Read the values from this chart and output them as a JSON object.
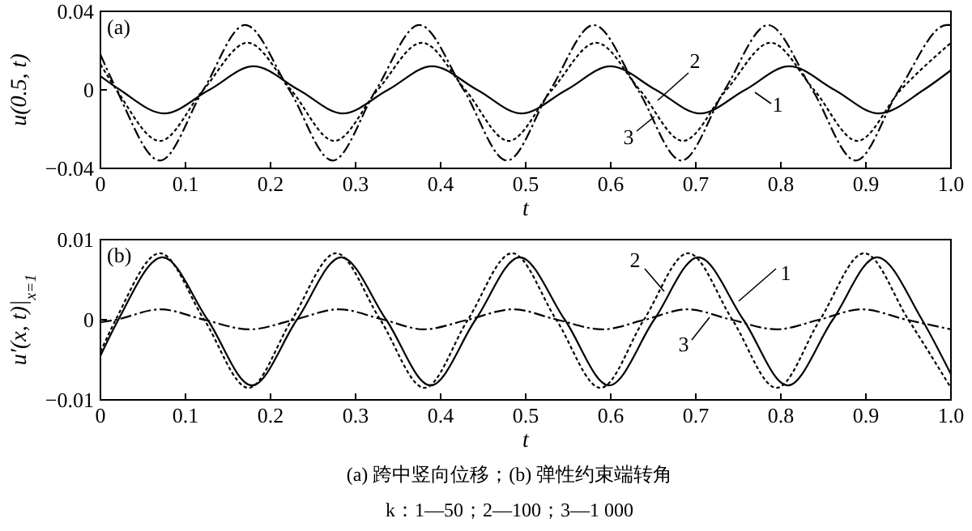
{
  "chart_data": [
    {
      "type": "line",
      "title": "(a)",
      "xlabel": "t",
      "ylabel": "u(0.5, t)",
      "xlim": [
        0,
        1
      ],
      "ylim": [
        -0.04,
        0.04
      ],
      "xticks": [
        0,
        0.1,
        0.2,
        0.3,
        0.4,
        0.5,
        0.6,
        0.7,
        0.8,
        0.9,
        {
          "value": 1,
          "label": "1.0"
        }
      ],
      "yticks": [
        {
          "value": -0.04,
          "label": "−0.04"
        },
        0,
        0.04
      ],
      "grid": false,
      "marker": "none",
      "series": [
        {
          "name": "1",
          "color": "#000000",
          "line_style": "solid",
          "x": [
            0,
            0.023,
            0.075,
            0.128,
            0.18,
            0.233,
            0.285,
            0.338,
            0.39,
            0.443,
            0.495,
            0.548,
            0.6,
            0.653,
            0.705,
            0.758,
            0.81,
            0.863,
            0.915,
            0.968,
            1
          ],
          "values": [
            0.007,
            0,
            -0.012,
            0,
            0.012,
            0,
            -0.012,
            0,
            0.012,
            0,
            -0.012,
            0,
            0.012,
            0,
            -0.012,
            0,
            0.012,
            0,
            -0.012,
            0,
            0.01
          ]
        },
        {
          "name": "2",
          "color": "#000000",
          "line_style": "dotted",
          "x": [
            0,
            0.019,
            0.07,
            0.121,
            0.173,
            0.224,
            0.275,
            0.326,
            0.378,
            0.429,
            0.48,
            0.531,
            0.583,
            0.634,
            0.685,
            0.736,
            0.788,
            0.839,
            0.89,
            0.941,
            1
          ],
          "values": [
            0.013,
            0,
            -0.026,
            0,
            0.024,
            0,
            -0.026,
            0,
            0.024,
            0,
            -0.026,
            0,
            0.024,
            0,
            -0.026,
            0,
            0.024,
            0,
            -0.026,
            0,
            0.024
          ]
        },
        {
          "name": "3",
          "color": "#000000",
          "line_style": "dashdot",
          "x": [
            0,
            0.019,
            0.07,
            0.121,
            0.17,
            0.222,
            0.273,
            0.324,
            0.375,
            0.427,
            0.478,
            0.529,
            0.58,
            0.632,
            0.683,
            0.734,
            0.785,
            0.837,
            0.888,
            0.939,
            0.995,
            1
          ],
          "values": [
            0.018,
            0,
            -0.036,
            0,
            0.033,
            0,
            -0.036,
            0,
            0.033,
            0,
            -0.036,
            0,
            0.033,
            0,
            -0.036,
            0,
            0.033,
            0,
            -0.036,
            0,
            0.033,
            0.033
          ]
        }
      ]
    },
    {
      "type": "line",
      "title": "(b)",
      "xlabel": "t",
      "ylabel": "u′(x, t)|$_{x=1}$",
      "xlim": [
        0,
        1
      ],
      "ylim": [
        -0.01,
        0.01
      ],
      "xticks": [
        0,
        0.1,
        0.2,
        0.3,
        0.4,
        0.5,
        0.6,
        0.7,
        0.8,
        0.9,
        {
          "value": 1,
          "label": "1.0"
        }
      ],
      "yticks": [
        {
          "value": -0.01,
          "label": "−0.01"
        },
        0,
        0.01
      ],
      "grid": false,
      "marker": "none",
      "annotations": [
        "(a) 跨中竖向位移；(b) 弹性约束端转角",
        "k：1—50；2—100；3—1 000"
      ],
      "series": [
        {
          "name": "1",
          "color": "#000000",
          "line_style": "solid",
          "x": [
            0,
            0.021,
            0.073,
            0.126,
            0.178,
            0.231,
            0.283,
            0.336,
            0.388,
            0.441,
            0.493,
            0.546,
            0.598,
            0.651,
            0.703,
            0.756,
            0.808,
            0.861,
            0.913,
            0.966,
            1
          ],
          "values": [
            -0.0045,
            0,
            0.0078,
            0,
            -0.0082,
            0,
            0.0078,
            0,
            -0.0082,
            0,
            0.0078,
            0,
            -0.0082,
            0,
            0.0078,
            0,
            -0.0082,
            0,
            0.0078,
            0,
            -0.0068
          ]
        },
        {
          "name": "2",
          "color": "#000000",
          "line_style": "dotted",
          "x": [
            0,
            0.018,
            0.07,
            0.122,
            0.174,
            0.225,
            0.277,
            0.329,
            0.381,
            0.432,
            0.484,
            0.536,
            0.588,
            0.639,
            0.691,
            0.743,
            0.795,
            0.846,
            0.898,
            0.95,
            1
          ],
          "values": [
            -0.004,
            0,
            0.0083,
            0,
            -0.0085,
            0,
            0.0083,
            0,
            -0.0085,
            0,
            0.0083,
            0,
            -0.0085,
            0,
            0.0083,
            0,
            -0.0085,
            0,
            0.0083,
            0,
            -0.0085
          ]
        },
        {
          "name": "3",
          "color": "#000000",
          "line_style": "dashdot",
          "x": [
            0,
            0.018,
            0.07,
            0.122,
            0.175,
            0.228,
            0.28,
            0.333,
            0.38,
            0.432,
            0.485,
            0.537,
            0.59,
            0.64,
            0.69,
            0.742,
            0.795,
            0.845,
            0.895,
            0.948,
            1
          ],
          "values": [
            -0.0003,
            0,
            0.0013,
            0,
            -0.0012,
            0,
            0.0013,
            0,
            -0.0012,
            0,
            0.0013,
            0,
            -0.0012,
            0,
            0.0013,
            0,
            -0.0012,
            0,
            0.0013,
            0,
            -0.0012
          ]
        }
      ]
    }
  ]
}
